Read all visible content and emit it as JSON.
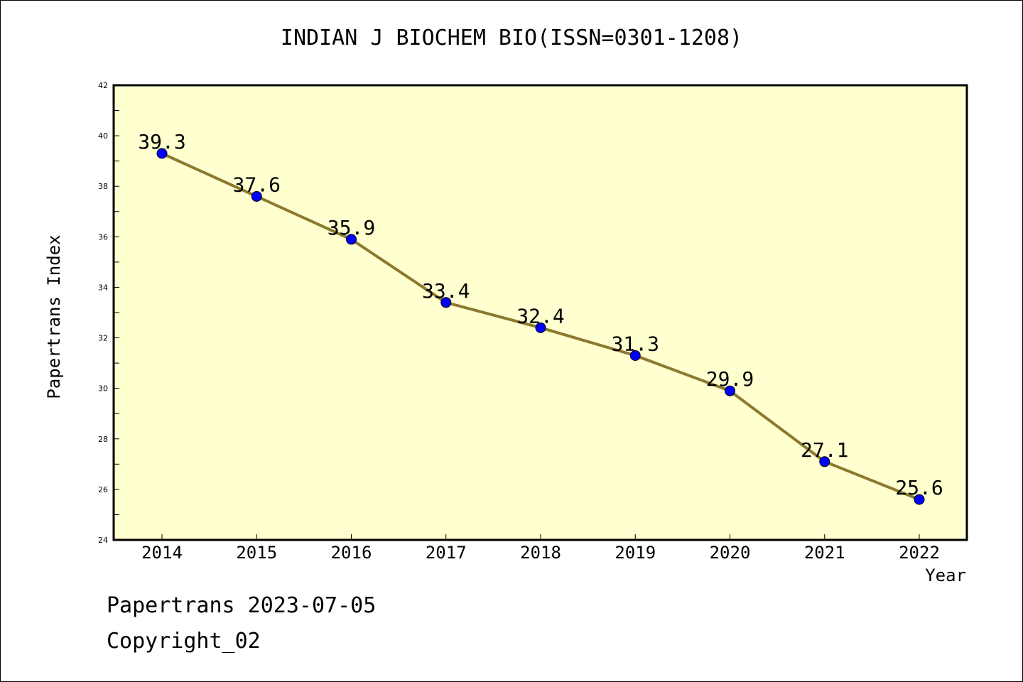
{
  "chart_data": {
    "type": "line",
    "title": "INDIAN J BIOCHEM BIO(ISSN=0301-1208)",
    "xlabel": "Year",
    "ylabel": "Papertrans Index",
    "categories": [
      "2014",
      "2015",
      "2016",
      "2017",
      "2018",
      "2019",
      "2020",
      "2021",
      "2022"
    ],
    "series": [
      {
        "values": [
          39.3,
          37.6,
          35.9,
          33.4,
          32.4,
          31.3,
          29.9,
          27.1,
          25.6
        ],
        "labels": [
          "39.3",
          "37.6",
          "35.9",
          "33.4",
          "32.4",
          "31.3",
          "29.9",
          "27.1",
          "25.6"
        ]
      }
    ],
    "ylim": [
      24,
      42
    ],
    "yticks": [
      24,
      26,
      28,
      30,
      32,
      34,
      36,
      38,
      40,
      42
    ],
    "grid": false,
    "colors": {
      "plot_background": "#ffffd0",
      "line": "#8b7a2e",
      "marker": "#0000ff"
    }
  },
  "footer": {
    "line1": "Papertrans 2023-07-05",
    "line2": "Copyright_02"
  }
}
